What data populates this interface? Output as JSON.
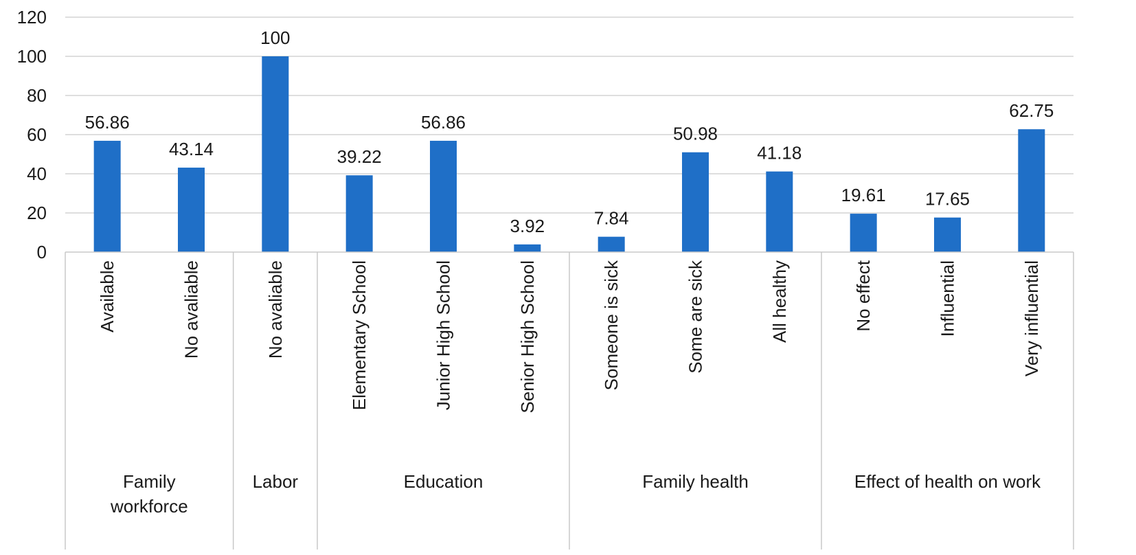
{
  "chart_data": {
    "type": "bar",
    "title": "",
    "xlabel": "",
    "ylabel": "",
    "ylim": [
      0,
      120
    ],
    "yticks": [
      0,
      20,
      40,
      60,
      80,
      100,
      120
    ],
    "grid": true,
    "legend": "none",
    "bar_color": "#1f6fc7",
    "groups": [
      {
        "name": "Family workforce",
        "label_lines": [
          "Family",
          "workforce"
        ],
        "categories": [
          "Available",
          "No avaliable"
        ],
        "values": [
          56.86,
          43.14
        ]
      },
      {
        "name": "Labor",
        "label_lines": [
          "Labor"
        ],
        "categories": [
          "No avaliable"
        ],
        "values": [
          100
        ]
      },
      {
        "name": "Education",
        "label_lines": [
          "Education"
        ],
        "categories": [
          "Elementary School",
          "Junior High School",
          "Senior High School"
        ],
        "values": [
          39.22,
          56.86,
          3.92
        ]
      },
      {
        "name": "Family health",
        "label_lines": [
          "Family health"
        ],
        "categories": [
          "Someone is sick",
          "Some are sick",
          "All healthy"
        ],
        "values": [
          7.84,
          50.98,
          41.18
        ]
      },
      {
        "name": "Effect of health on work",
        "label_lines": [
          "Effect of health on work"
        ],
        "categories": [
          "No effect",
          "Influential",
          "Very influential"
        ],
        "values": [
          19.61,
          17.65,
          62.75
        ]
      }
    ],
    "value_labels": [
      "56.86",
      "43.14",
      "100",
      "39.22",
      "56.86",
      "3.92",
      "7.84",
      "50.98",
      "41.18",
      "19.61",
      "17.65",
      "62.75"
    ]
  }
}
